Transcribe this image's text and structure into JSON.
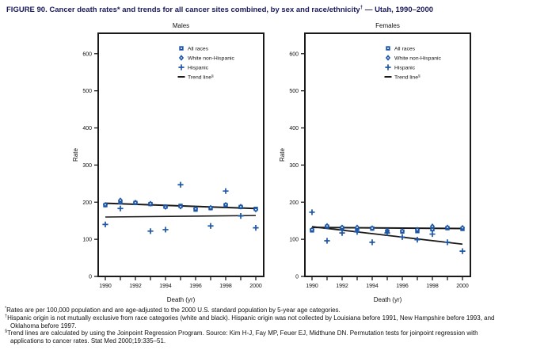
{
  "title": {
    "main": "FIGURE 90. Cancer death rates* and trends for all cancer sites combined, by sex and race/ethnicity",
    "sup": "†",
    "tail": " — Utah, 1990–2000"
  },
  "colors": {
    "marker_blue": "#1d56a5",
    "trend_black": "#1a1a1a",
    "title_navy": "#1a1a5e"
  },
  "axes": {
    "ylabel": "Rate",
    "xlabel": "Death (yr)",
    "ylim": [
      0,
      655
    ],
    "yticks": [
      0,
      100,
      200,
      300,
      400,
      500,
      600
    ],
    "xticks": [
      1990,
      1991,
      1992,
      1993,
      1994,
      1995,
      1996,
      1997,
      1998,
      1999,
      2000
    ],
    "xtick_labels": [
      1990,
      1992,
      1994,
      1996,
      1998,
      2000
    ]
  },
  "legend": {
    "items": [
      {
        "marker": "square",
        "label": "All races"
      },
      {
        "marker": "diamond",
        "label": "White non-Hispanic"
      },
      {
        "marker": "plus",
        "label": "Hispanic"
      },
      {
        "marker": "line",
        "label": "Trend line",
        "sup": "§"
      }
    ]
  },
  "chart_data": [
    {
      "type": "scatter",
      "title": "Males",
      "x": [
        1990,
        1991,
        1992,
        1993,
        1994,
        1995,
        1996,
        1997,
        1998,
        1999,
        2000
      ],
      "series": [
        {
          "name": "All races",
          "marker": "square",
          "values": [
            192,
            200,
            198,
            195,
            188,
            190,
            180,
            184,
            192,
            187,
            182
          ]
        },
        {
          "name": "White non-Hispanic",
          "marker": "diamond",
          "values": [
            193,
            205,
            199,
            196,
            187,
            188,
            182,
            185,
            193,
            188,
            180
          ]
        },
        {
          "name": "Hispanic",
          "marker": "plus",
          "values": [
            140,
            183,
            null,
            122,
            126,
            247,
            null,
            136,
            230,
            163,
            131
          ]
        }
      ],
      "trend_lines": [
        {
          "name": "All races / White non-Hispanic trend",
          "points": [
            [
              1990,
              197
            ],
            [
              2000,
              183
            ]
          ],
          "width": 2
        },
        {
          "name": "Hispanic trend",
          "points": [
            [
              1990,
              160
            ],
            [
              2000,
              164
            ]
          ],
          "width": 1.6
        }
      ]
    },
    {
      "type": "scatter",
      "title": "Females",
      "x": [
        1990,
        1991,
        1992,
        1993,
        1994,
        1995,
        1996,
        1997,
        1998,
        1999,
        2000
      ],
      "series": [
        {
          "name": "All races",
          "marker": "square",
          "values": [
            124,
            134,
            130,
            128,
            129,
            121,
            121,
            122,
            127,
            130,
            128
          ]
        },
        {
          "name": "White non-Hispanic",
          "marker": "diamond",
          "values": [
            126,
            136,
            132,
            132,
            130,
            123,
            122,
            126,
            135,
            132,
            131
          ]
        },
        {
          "name": "Hispanic",
          "marker": "plus",
          "values": [
            173,
            96,
            117,
            120,
            92,
            117,
            106,
            99,
            114,
            92,
            68
          ]
        }
      ],
      "trend_lines": [
        {
          "name": "All races / White non-Hispanic trend",
          "points": [
            [
              1990,
              132
            ],
            [
              2000,
              129
            ]
          ],
          "width": 2
        },
        {
          "name": "Hispanic trend",
          "points": [
            [
              1990,
              134
            ],
            [
              2000,
              87
            ]
          ],
          "width": 1.8
        }
      ]
    }
  ],
  "footnotes": [
    {
      "sup": "*",
      "text": "Rates are per 100,000 population and are age-adjusted to the 2000 U.S. standard population by 5-year age categories."
    },
    {
      "sup": "†",
      "text": "Hispanic origin is not mutually exclusive from race categories (white and black). Hispanic origin was not collected by Louisiana before 1991, New Hampshire before 1993, and Oklahoma before 1997."
    },
    {
      "sup": "§",
      "text": "Trend lines are calculated by using the Joinpoint Regression Program. Source: Kim H-J, Fay MP, Feuer EJ, Midthune DN. Permutation tests for joinpoint regression with applications to cancer rates. Stat Med 2000;19:335–51."
    }
  ]
}
